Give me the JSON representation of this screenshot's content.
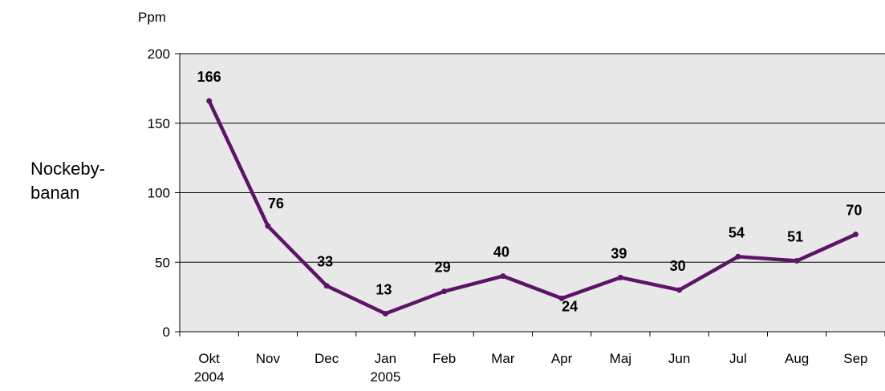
{
  "chart_data": {
    "type": "line",
    "y_unit_label": "Ppm",
    "side_label_lines": [
      "Nockeby-",
      "banan"
    ],
    "categories": [
      [
        "Okt",
        "2004"
      ],
      [
        "Nov"
      ],
      [
        "Dec"
      ],
      [
        "Jan",
        "2005"
      ],
      [
        "Feb"
      ],
      [
        "Mar"
      ],
      [
        "Apr"
      ],
      [
        "Maj"
      ],
      [
        "Jun"
      ],
      [
        "Jul"
      ],
      [
        "Aug"
      ],
      [
        "Sep"
      ]
    ],
    "values": [
      166,
      76,
      33,
      13,
      29,
      40,
      24,
      39,
      30,
      54,
      51,
      70
    ],
    "yticks": [
      0,
      50,
      100,
      150,
      200
    ],
    "ylim": [
      0,
      200
    ],
    "grid": true,
    "colors": {
      "line": "#5b1466",
      "plot_bg": "#e8e8e8",
      "grid": "#000000"
    }
  }
}
